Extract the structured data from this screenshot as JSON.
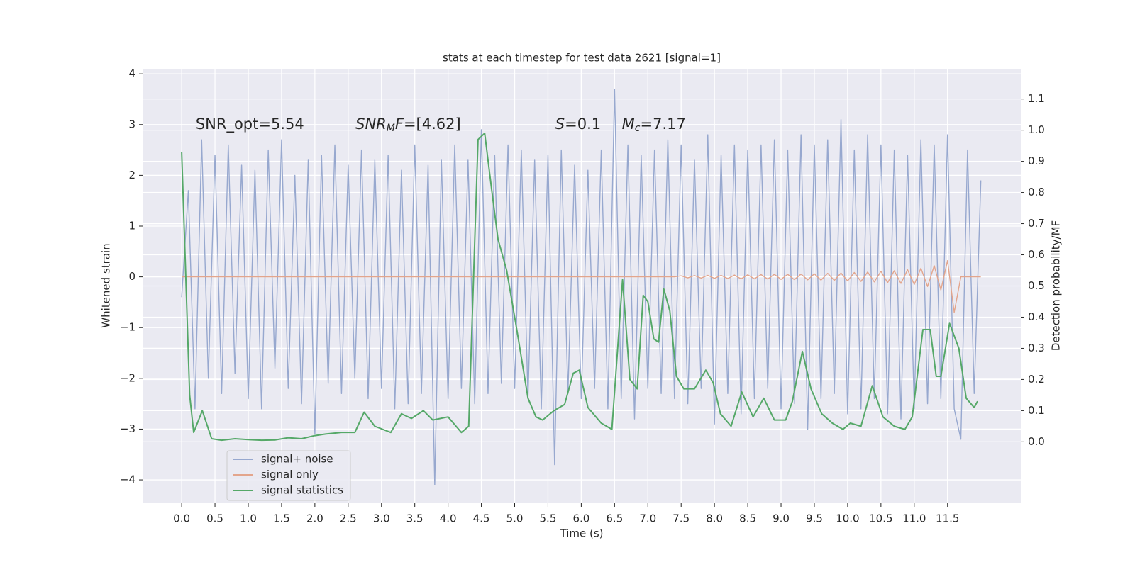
{
  "chart_data": {
    "type": "line",
    "title": "stats at each timestep for test data 2621 [signal=1]",
    "x_label": "Time (s)",
    "y_label": "Whitened strain",
    "y2_label": "Detection probability/MF",
    "annotations": [
      [
        "SNR_opt=5.54"
      ],
      [
        "SNR",
        "M",
        "F",
        "=[4.62]"
      ],
      [
        "S",
        "=0.1"
      ],
      [
        "M",
        "c",
        "=7.17"
      ]
    ],
    "grid": true,
    "legend": "lower left",
    "xlim": [
      -0.587,
      12.6
    ],
    "ylim": [
      -4.46,
      4.1
    ],
    "y2lim": [
      -0.197,
      1.197
    ],
    "xticks": [
      {
        "value": 0,
        "label": "0.0"
      },
      0.5,
      {
        "value": 1,
        "label": "1.0"
      },
      1.5,
      {
        "value": 2,
        "label": "2.0"
      },
      2.5,
      {
        "value": 3,
        "label": "3.0"
      },
      3.5,
      {
        "value": 4,
        "label": "4.0"
      },
      4.5,
      {
        "value": 5,
        "label": "5.0"
      },
      5.5,
      {
        "value": 6,
        "label": "6.0"
      },
      6.5,
      {
        "value": 7,
        "label": "7.0"
      },
      7.5,
      {
        "value": 8,
        "label": "8.0"
      },
      8.5,
      {
        "value": 9,
        "label": "9.0"
      },
      9.5,
      {
        "value": 10,
        "label": "10.0"
      },
      10.5,
      {
        "value": 11,
        "label": "11.0"
      },
      11.5
    ],
    "yticks": [
      {
        "value": -4,
        "label": "−4"
      },
      {
        "value": -3,
        "label": "−3"
      },
      {
        "value": -2,
        "label": "−2"
      },
      {
        "value": -1,
        "label": "−1"
      },
      0,
      1,
      2,
      3,
      4
    ],
    "y2ticks": [
      {
        "value": 0,
        "label": "0.0"
      },
      0.1,
      0.2,
      0.3,
      0.4,
      0.5,
      0.6,
      0.7,
      0.8,
      0.9,
      {
        "value": 1,
        "label": "1.0"
      },
      1.1
    ],
    "x": [
      0.0,
      0.1,
      0.2,
      0.3,
      0.4,
      0.5,
      0.6,
      0.7,
      0.8,
      0.9,
      1.0,
      1.1,
      1.2,
      1.3,
      1.4,
      1.5,
      1.6,
      1.7,
      1.8,
      1.9,
      2.0,
      2.1,
      2.2,
      2.3,
      2.4,
      2.5,
      2.6,
      2.7,
      2.8,
      2.9,
      3.0,
      3.1,
      3.2,
      3.3,
      3.4,
      3.5,
      3.6,
      3.7,
      3.8,
      3.9,
      4.0,
      4.1,
      4.2,
      4.3,
      4.4,
      4.5,
      4.6,
      4.7,
      4.8,
      4.9,
      5.0,
      5.1,
      5.2,
      5.3,
      5.4,
      5.5,
      5.6,
      5.7,
      5.8,
      5.9,
      6.0,
      6.1,
      6.2,
      6.3,
      6.4,
      6.5,
      6.6,
      6.7,
      6.8,
      6.9,
      7.0,
      7.1,
      7.2,
      7.3,
      7.4,
      7.5,
      7.6,
      7.7,
      7.8,
      7.9,
      8.0,
      8.1,
      8.2,
      8.3,
      8.4,
      8.5,
      8.6,
      8.7,
      8.8,
      8.9,
      9.0,
      9.1,
      9.2,
      9.3,
      9.4,
      9.5,
      9.6,
      9.7,
      9.8,
      9.9,
      10.0,
      10.1,
      10.2,
      10.3,
      10.4,
      10.5,
      10.6,
      10.7,
      10.8,
      10.9,
      11.0,
      11.1,
      11.2,
      11.3,
      11.4,
      11.5,
      11.6,
      11.7,
      11.8,
      11.9,
      12.0
    ],
    "series": [
      {
        "name": "signal+ noise",
        "color": "#97a8cf",
        "values": [
          -0.4,
          1.7,
          -2.6,
          2.7,
          -2.0,
          2.4,
          -2.3,
          2.6,
          -1.9,
          2.2,
          -2.4,
          2.1,
          -2.6,
          2.5,
          -1.8,
          2.7,
          -2.2,
          2.0,
          -2.5,
          2.3,
          -3.1,
          2.4,
          -2.1,
          2.6,
          -2.3,
          2.2,
          -2.0,
          2.5,
          -2.4,
          2.3,
          -2.2,
          2.4,
          -2.6,
          2.1,
          -2.5,
          2.6,
          -2.3,
          2.2,
          -4.1,
          2.3,
          -2.4,
          2.6,
          -2.2,
          2.3,
          -2.5,
          2.9,
          -2.3,
          2.4,
          -2.1,
          2.6,
          -2.2,
          2.5,
          -2.4,
          2.3,
          -2.6,
          2.4,
          -3.7,
          2.5,
          -2.3,
          2.2,
          -2.4,
          2.1,
          -2.2,
          2.5,
          -2.6,
          3.7,
          -2.4,
          2.6,
          -2.8,
          2.4,
          -2.2,
          2.5,
          -2.3,
          2.7,
          -2.4,
          2.6,
          -2.5,
          2.3,
          -2.2,
          2.8,
          -2.9,
          2.4,
          -2.3,
          2.6,
          -2.7,
          2.5,
          -2.4,
          2.6,
          -2.2,
          2.7,
          -2.6,
          2.5,
          -2.5,
          2.8,
          -3.0,
          2.6,
          -2.4,
          2.7,
          -2.3,
          3.1,
          -2.7,
          2.5,
          -2.6,
          2.8,
          -2.4,
          2.6,
          -2.7,
          2.5,
          -2.8,
          2.4,
          -2.6,
          2.7,
          -2.5,
          2.6,
          -2.4,
          2.8,
          -2.6,
          -3.2,
          2.5,
          -2.3,
          1.9
        ]
      },
      {
        "name": "signal only",
        "color": "#e3a58c",
        "values": [
          0,
          0,
          0,
          0,
          0,
          0,
          0,
          0,
          0,
          0,
          0,
          0,
          0,
          0,
          0,
          0,
          0,
          0,
          0,
          0,
          0,
          0,
          0,
          0,
          0,
          0,
          0,
          0,
          0,
          0,
          0,
          0,
          0,
          0,
          0,
          0,
          0,
          0,
          0,
          0,
          0,
          0,
          0,
          0,
          0,
          0,
          0,
          0,
          0,
          0,
          0,
          0,
          0,
          0,
          0,
          0,
          0,
          0,
          0,
          0,
          0,
          0,
          0,
          0,
          0,
          0,
          0,
          0,
          0,
          0,
          0,
          0,
          0,
          0,
          0,
          0.02,
          -0.02,
          0.025,
          -0.025,
          0.03,
          -0.03,
          0.03,
          -0.035,
          0.035,
          -0.04,
          0.04,
          -0.04,
          0.045,
          -0.045,
          0.05,
          -0.05,
          0.05,
          -0.055,
          0.055,
          -0.06,
          0.06,
          -0.065,
          0.07,
          -0.07,
          0.075,
          -0.08,
          0.085,
          -0.09,
          0.095,
          -0.1,
          0.11,
          -0.115,
          0.12,
          -0.13,
          0.14,
          -0.15,
          0.17,
          -0.19,
          0.22,
          -0.26,
          0.32,
          -0.7,
          0,
          0,
          0,
          0
        ]
      },
      {
        "name": "signal statistics",
        "color": "#55a868",
        "axis": "y2",
        "x": [
          0,
          0.12,
          0.18,
          0.31,
          0.45,
          0.6,
          0.8,
          1.0,
          1.2,
          1.4,
          1.6,
          1.8,
          2.0,
          2.16,
          2.4,
          2.6,
          2.74,
          2.9,
          3.14,
          3.3,
          3.45,
          3.63,
          3.77,
          4.0,
          4.2,
          4.31,
          4.45,
          4.55,
          4.66,
          4.75,
          4.88,
          5.04,
          5.2,
          5.32,
          5.42,
          5.59,
          5.75,
          5.88,
          5.97,
          6.1,
          6.3,
          6.46,
          6.62,
          6.73,
          6.84,
          6.93,
          7.0,
          7.09,
          7.16,
          7.24,
          7.33,
          7.43,
          7.54,
          7.7,
          7.87,
          7.98,
          8.09,
          8.25,
          8.41,
          8.58,
          8.74,
          8.9,
          9.07,
          9.17,
          9.32,
          9.45,
          9.61,
          9.77,
          9.93,
          10.04,
          10.2,
          10.37,
          10.53,
          10.7,
          10.86,
          10.97,
          11.13,
          11.24,
          11.33,
          11.4,
          11.53,
          11.67,
          11.78,
          11.9,
          11.95
        ],
        "values": [
          0.93,
          0.15,
          0.03,
          0.1,
          0.01,
          0.005,
          0.01,
          0.007,
          0.005,
          0.006,
          0.013,
          0.01,
          0.02,
          0.025,
          0.03,
          0.03,
          0.095,
          0.05,
          0.03,
          0.09,
          0.075,
          0.1,
          0.07,
          0.08,
          0.03,
          0.05,
          0.97,
          0.99,
          0.8,
          0.65,
          0.55,
          0.35,
          0.14,
          0.08,
          0.07,
          0.1,
          0.12,
          0.22,
          0.23,
          0.11,
          0.06,
          0.04,
          0.52,
          0.2,
          0.17,
          0.47,
          0.45,
          0.33,
          0.32,
          0.49,
          0.42,
          0.21,
          0.17,
          0.17,
          0.23,
          0.19,
          0.09,
          0.05,
          0.16,
          0.08,
          0.14,
          0.07,
          0.07,
          0.13,
          0.29,
          0.17,
          0.09,
          0.06,
          0.04,
          0.06,
          0.05,
          0.18,
          0.08,
          0.05,
          0.04,
          0.08,
          0.36,
          0.36,
          0.21,
          0.21,
          0.38,
          0.3,
          0.14,
          0.11,
          0.13
        ]
      }
    ]
  }
}
